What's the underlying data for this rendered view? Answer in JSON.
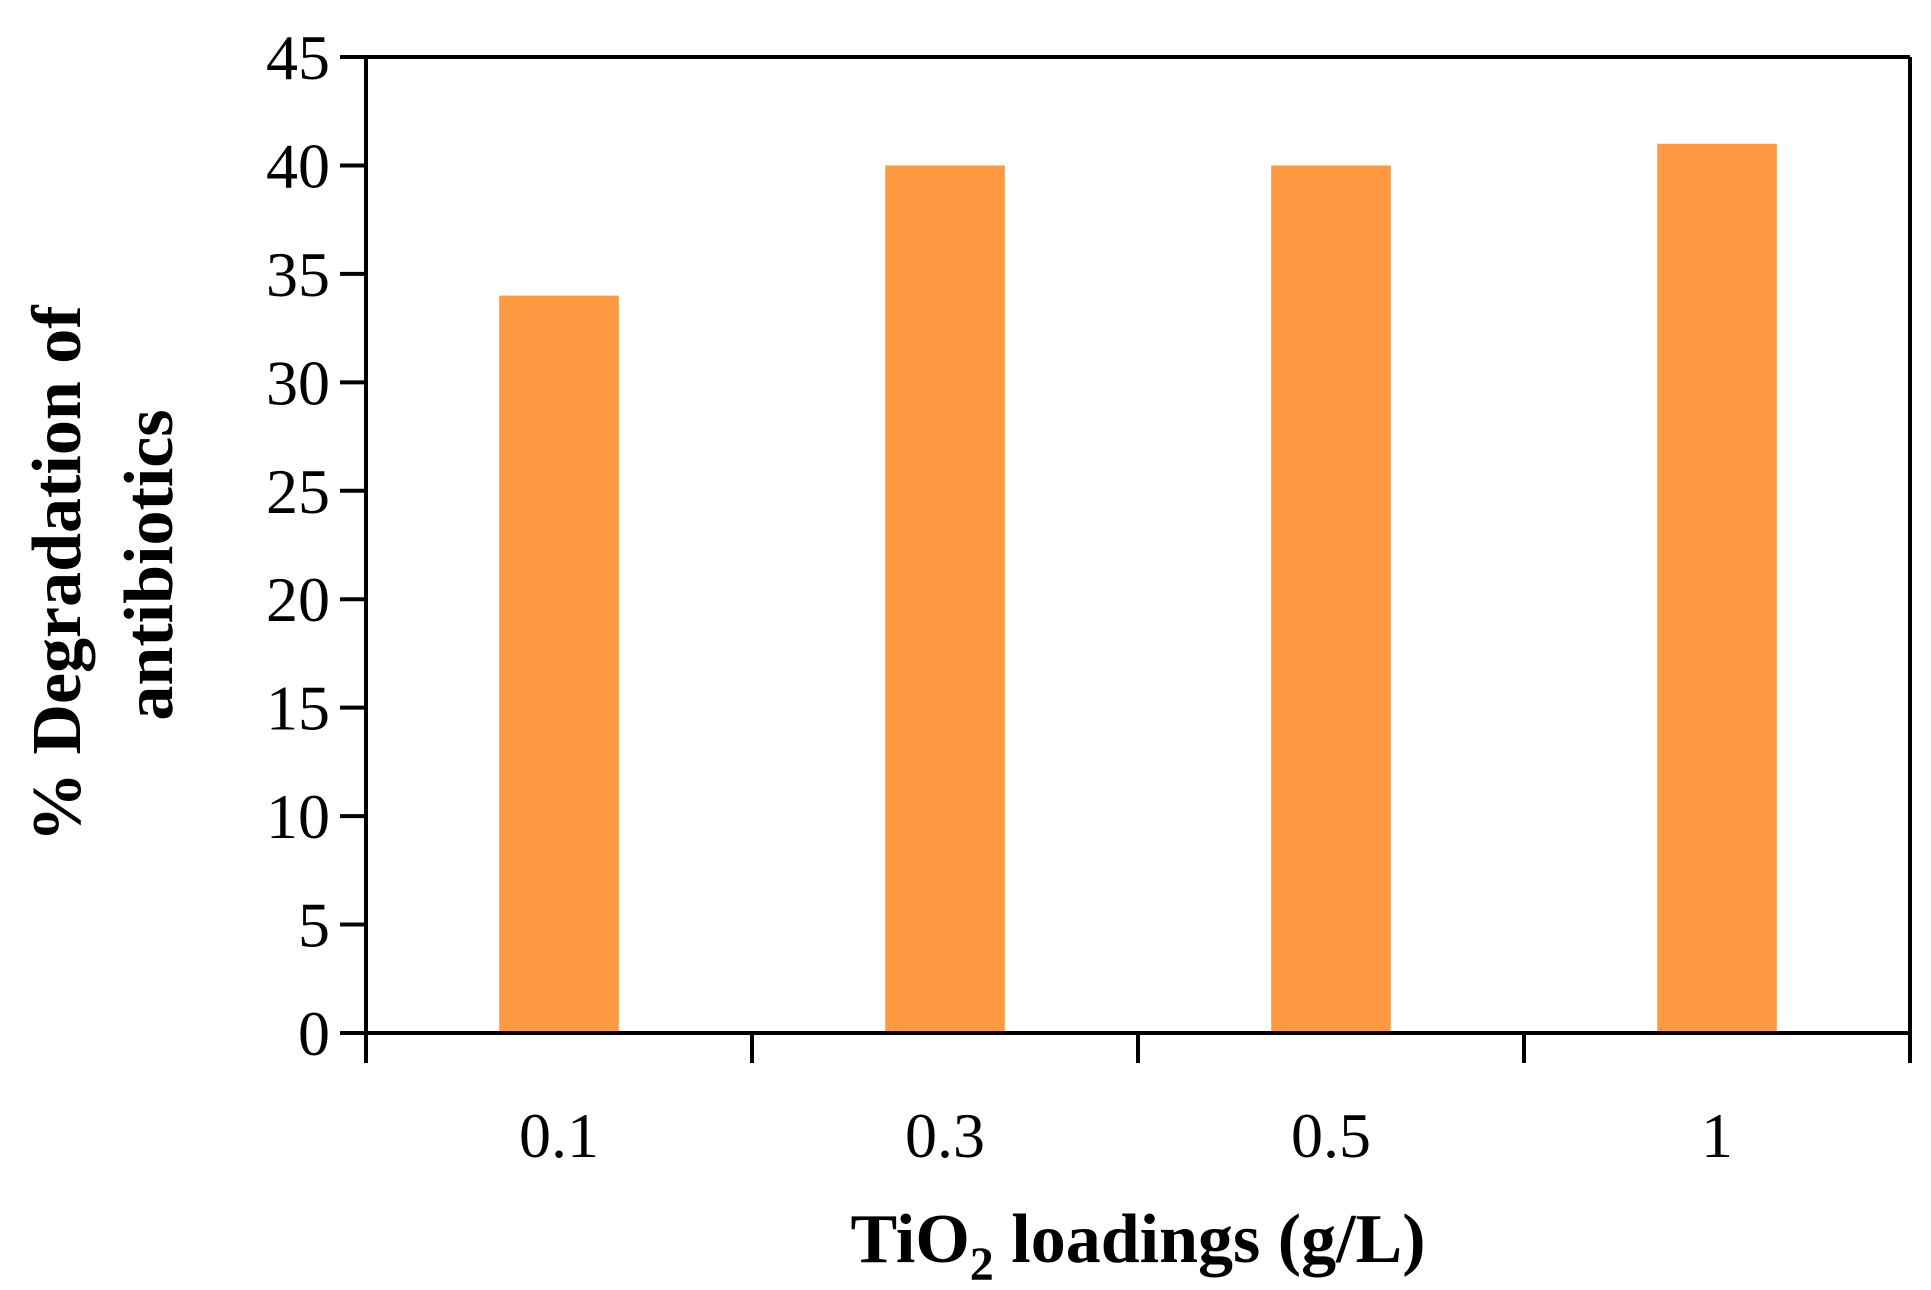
{
  "chart_data": {
    "type": "bar",
    "categories": [
      "0.1",
      "0.3",
      "0.5",
      "1"
    ],
    "values": [
      34,
      40,
      40,
      41
    ],
    "xlabel": {
      "main": "TiO",
      "subscript": "2",
      "suffix": " loadings (g/L)"
    },
    "ylabel": {
      "line1": "% Degradation of",
      "line2": "antibiotics"
    },
    "ylim": [
      0,
      45
    ],
    "yticks": [
      "0",
      "5",
      "10",
      "15",
      "20",
      "25",
      "30",
      "35",
      "40",
      "45"
    ],
    "bar_color": "#FF9A42",
    "axis_color": "#000000",
    "grid": false,
    "legend": "none"
  }
}
